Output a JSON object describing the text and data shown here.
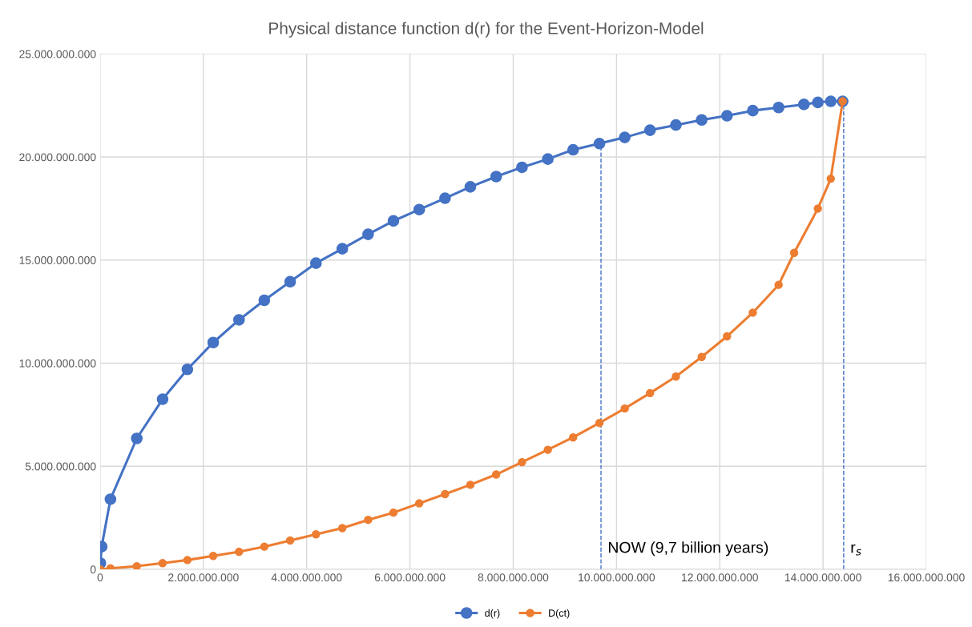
{
  "chart_data": {
    "type": "line",
    "title": "Physical distance function d(r) for the Event-Horizon-Model",
    "series": [
      {
        "name": "d(r)",
        "color": "#4472c4",
        "x": [
          5000000,
          30000000,
          200000000,
          710000000,
          1210000000,
          1690000000,
          2190000000,
          2690000000,
          3180000000,
          3680000000,
          4180000000,
          4690000000,
          5190000000,
          5680000000,
          6180000000,
          6680000000,
          7170000000,
          7670000000,
          8170000000,
          8670000000,
          9160000000,
          9670000000,
          10160000000,
          10650000000,
          11150000000,
          11650000000,
          12140000000,
          12640000000,
          13140000000,
          13630000000,
          13900000000,
          14150000000,
          14380000000
        ],
        "values": [
          300000000,
          1100000000,
          3400000000,
          6350000000,
          8250000000,
          9700000000,
          11000000000,
          12100000000,
          13050000000,
          13950000000,
          14850000000,
          15550000000,
          16250000000,
          16900000000,
          17450000000,
          18000000000,
          18550000000,
          19050000000,
          19500000000,
          19900000000,
          20350000000,
          20650000000,
          20950000000,
          21300000000,
          21550000000,
          21800000000,
          22000000000,
          22250000000,
          22400000000,
          22550000000,
          22650000000,
          22700000000,
          22700000000
        ]
      },
      {
        "name": "D(ct)",
        "color": "#ed7d31",
        "x": [
          0,
          200000000,
          710000000,
          1210000000,
          1690000000,
          2190000000,
          2690000000,
          3180000000,
          3680000000,
          4180000000,
          4690000000,
          5190000000,
          5680000000,
          6180000000,
          6680000000,
          7170000000,
          7670000000,
          8170000000,
          8670000000,
          9160000000,
          9670000000,
          10160000000,
          10650000000,
          11150000000,
          11650000000,
          12140000000,
          12640000000,
          13140000000,
          13440000000,
          13900000000,
          14150000000,
          14380000000
        ],
        "values": [
          0,
          50000000,
          150000000,
          300000000,
          450000000,
          650000000,
          850000000,
          1100000000,
          1400000000,
          1700000000,
          2000000000,
          2400000000,
          2750000000,
          3200000000,
          3650000000,
          4100000000,
          4600000000,
          5200000000,
          5800000000,
          6400000000,
          7100000000,
          7800000000,
          8550000000,
          9350000000,
          10300000000,
          11300000000,
          12450000000,
          13800000000,
          15350000000,
          17500000000,
          18950000000,
          22700000000
        ]
      }
    ],
    "xlim": [
      0,
      16000000000
    ],
    "xticks": [
      0,
      {
        "value": 2000000000,
        "label": "2.000.000.000"
      },
      {
        "value": 4000000000,
        "label": "4.000.000.000"
      },
      {
        "value": 6000000000,
        "label": "6.000.000.000"
      },
      {
        "value": 8000000000,
        "label": "8.000.000.000"
      },
      {
        "value": 10000000000,
        "label": "10.000.000.000"
      },
      {
        "value": 12000000000,
        "label": "12.000.000.000"
      },
      {
        "value": 14000000000,
        "label": "14.000.000.000"
      },
      {
        "value": 16000000000,
        "label": "16.000.000.000"
      }
    ],
    "ylim": [
      0,
      25000000000
    ],
    "yticks": [
      0,
      {
        "value": 5000000000,
        "label": "5.000.000.000"
      },
      {
        "value": 10000000000,
        "label": "10.000.000.000"
      },
      {
        "value": 15000000000,
        "label": "15.000.000.000"
      },
      {
        "value": 20000000000,
        "label": "20.000.000.000"
      },
      {
        "value": 25000000000,
        "label": "25.000.000.000"
      }
    ],
    "ref_lines": [
      {
        "axis": "x",
        "value": 9700000000,
        "label": "NOW (9,7 billion years)",
        "color": "#4472c4",
        "line_style": "dashed"
      },
      {
        "axis": "x",
        "value": 14400000000,
        "label": "r$_{s}$",
        "color": "#4472c4",
        "line_style": "dashed"
      }
    ],
    "grid": true,
    "legend": "bottom",
    "marker": "circle",
    "line_style": "solid"
  }
}
